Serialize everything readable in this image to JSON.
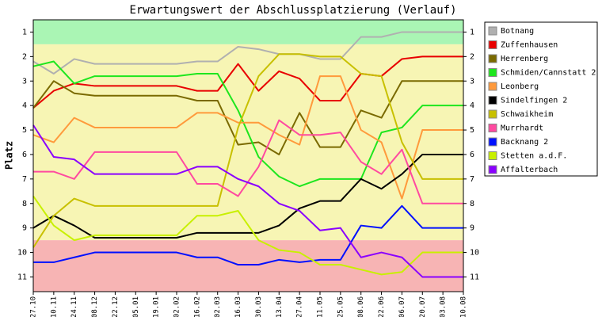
{
  "chart_data": {
    "type": "line",
    "title": "Erwartungswert der Abschlussplatzierung (Verlauf)",
    "y_label": "Platz",
    "categories": [
      "27.10",
      "10.11",
      "24.11",
      "08.12",
      "22.12",
      "05.01",
      "19.01",
      "02.02",
      "16.02",
      "02.03",
      "16.03",
      "30.03",
      "13.04",
      "27.04",
      "11.05",
      "25.05",
      "08.06",
      "22.06",
      "06.07",
      "20.07",
      "03.08",
      "10.08"
    ],
    "ylim": [
      0.5,
      11.6
    ],
    "y_inverted": true,
    "yticks": [
      1,
      2,
      3,
      4,
      5,
      6,
      7,
      8,
      9,
      10,
      11
    ],
    "bands": [
      {
        "from": 0.5,
        "to": 1.5,
        "color": "#aaf5b4"
      },
      {
        "from": 1.5,
        "to": 9.5,
        "color": "#f7f5b4"
      },
      {
        "from": 9.5,
        "to": 11.6,
        "color": "#f7b4b4"
      }
    ],
    "series": [
      {
        "name": "Botnang",
        "color": "#b0b0b0",
        "values": [
          2.2,
          2.7,
          2.1,
          2.3,
          2.3,
          2.3,
          2.3,
          2.3,
          2.2,
          2.2,
          1.6,
          1.7,
          1.9,
          1.9,
          2.1,
          2.1,
          1.2,
          1.2,
          1.0,
          1.0,
          1.0,
          1.0
        ]
      },
      {
        "name": "Zuffenhausen",
        "color": "#e80000",
        "values": [
          4.1,
          3.4,
          3.1,
          3.2,
          3.2,
          3.2,
          3.2,
          3.2,
          3.4,
          3.4,
          2.3,
          3.4,
          2.6,
          2.9,
          3.8,
          3.8,
          2.7,
          2.8,
          2.1,
          2.0,
          2.0,
          2.0
        ]
      },
      {
        "name": "Herrenberg",
        "color": "#7a6a00",
        "values": [
          4.1,
          3.0,
          3.5,
          3.6,
          3.6,
          3.6,
          3.6,
          3.6,
          3.8,
          3.8,
          5.6,
          5.5,
          6.0,
          4.3,
          5.7,
          5.7,
          4.2,
          4.5,
          3.0,
          3.0,
          3.0,
          3.0
        ]
      },
      {
        "name": "Schmiden/Cannstatt 2",
        "color": "#1ee61e",
        "values": [
          2.4,
          2.2,
          3.1,
          2.8,
          2.8,
          2.8,
          2.8,
          2.8,
          2.7,
          2.7,
          4.2,
          6.1,
          6.9,
          7.3,
          7.0,
          7.0,
          7.0,
          5.1,
          4.9,
          4.0,
          4.0,
          4.0
        ]
      },
      {
        "name": "Leonberg",
        "color": "#ff9a3c",
        "values": [
          5.2,
          5.5,
          4.5,
          4.9,
          4.9,
          4.9,
          4.9,
          4.9,
          4.3,
          4.3,
          4.7,
          4.7,
          5.2,
          5.6,
          2.8,
          2.8,
          5.0,
          5.5,
          7.8,
          5.0,
          5.0,
          5.0
        ]
      },
      {
        "name": "Sindelfingen 2",
        "color": "#000000",
        "values": [
          9.0,
          8.5,
          8.9,
          9.4,
          9.4,
          9.4,
          9.4,
          9.4,
          9.2,
          9.2,
          9.2,
          9.2,
          8.9,
          8.2,
          7.9,
          7.9,
          7.0,
          7.4,
          6.8,
          6.0,
          6.0,
          6.0
        ]
      },
      {
        "name": "Schwaikheim",
        "color": "#c8c000",
        "values": [
          9.8,
          8.5,
          7.8,
          8.1,
          8.1,
          8.1,
          8.1,
          8.1,
          8.1,
          8.1,
          4.9,
          2.8,
          1.9,
          1.9,
          2.0,
          2.0,
          2.7,
          2.8,
          5.5,
          7.0,
          7.0,
          7.0
        ]
      },
      {
        "name": "Murrhardt",
        "color": "#ff4aa0",
        "values": [
          6.7,
          6.7,
          7.0,
          5.9,
          5.9,
          5.9,
          5.9,
          5.9,
          7.2,
          7.2,
          7.7,
          6.5,
          4.6,
          5.2,
          5.2,
          5.1,
          6.3,
          6.8,
          5.8,
          8.0,
          8.0,
          8.0
        ]
      },
      {
        "name": "Backnang 2",
        "color": "#0010ff",
        "values": [
          10.4,
          10.4,
          10.2,
          10.0,
          10.0,
          10.0,
          10.0,
          10.0,
          10.2,
          10.2,
          10.5,
          10.5,
          10.3,
          10.4,
          10.3,
          10.3,
          8.9,
          9.0,
          8.1,
          9.0,
          9.0,
          9.0
        ]
      },
      {
        "name": "Stetten a.d.F.",
        "color": "#c8f000",
        "values": [
          7.7,
          8.9,
          9.5,
          9.3,
          9.3,
          9.3,
          9.3,
          9.3,
          8.5,
          8.5,
          8.3,
          9.5,
          9.9,
          10.0,
          10.5,
          10.5,
          10.7,
          10.9,
          10.8,
          10.0,
          10.0,
          10.0
        ]
      },
      {
        "name": "Affalterbach",
        "color": "#8a00ff",
        "values": [
          4.8,
          6.1,
          6.2,
          6.8,
          6.8,
          6.8,
          6.8,
          6.8,
          6.5,
          6.5,
          7.0,
          7.3,
          8.0,
          8.3,
          9.1,
          9.0,
          10.2,
          10.0,
          10.2,
          11.0,
          11.0,
          11.0
        ]
      }
    ]
  }
}
